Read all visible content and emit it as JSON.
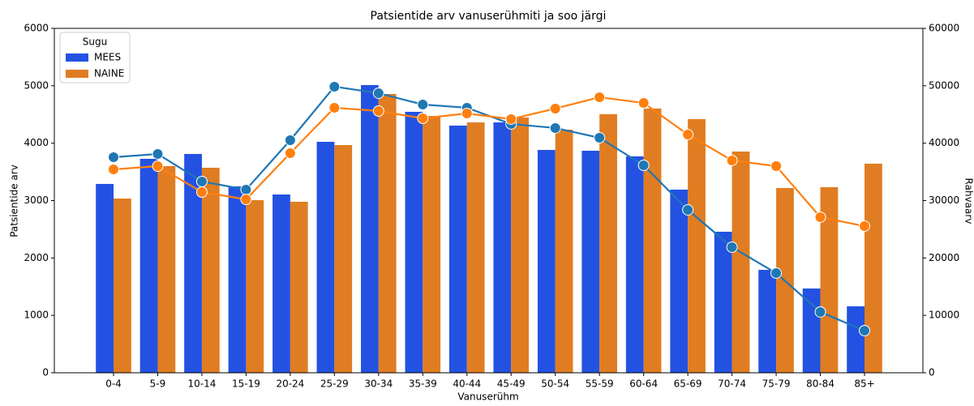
{
  "chart_data": {
    "type": "bar_line",
    "title": "Patsientide arv vanuserühmiti ja soo järgi",
    "x_label": "Vanuserühm",
    "y_label": "Patsientide arv",
    "y2_label": "Rahvaarv",
    "legend_title": "Sugu",
    "legend": "upper left",
    "categories": [
      "0-4",
      "5-9",
      "10-14",
      "15-19",
      "20-24",
      "25-29",
      "30-34",
      "35-39",
      "40-44",
      "45-49",
      "50-54",
      "55-59",
      "60-64",
      "65-69",
      "70-74",
      "75-79",
      "80-84",
      "85+"
    ],
    "series": [
      {
        "name": "MEES",
        "color": "#2352e2",
        "values": [
          3290,
          3727,
          3812,
          3247,
          3106,
          4024,
          5012,
          4546,
          4306,
          4362,
          3882,
          3868,
          3770,
          3191,
          2457,
          1793,
          1468,
          1158
        ]
      },
      {
        "name": "NAINE",
        "color": "#e07d22",
        "values": [
          3035,
          3600,
          3572,
          3007,
          2979,
          3967,
          4857,
          4475,
          4362,
          4447,
          4235,
          4504,
          4603,
          4419,
          3854,
          3219,
          3233,
          3643
        ]
      }
    ],
    "line_series": [
      {
        "color": "#1f77b4",
        "axis": "y2",
        "values": [
          37550,
          38120,
          33320,
          31910,
          40520,
          49840,
          48710,
          46730,
          46170,
          43340,
          42640,
          40940,
          36140,
          28380,
          21880,
          17360,
          10590,
          7340
        ]
      },
      {
        "color": "#ff7f0e",
        "axis": "y2",
        "values": [
          35440,
          36000,
          31480,
          30210,
          38260,
          46170,
          45600,
          44330,
          45180,
          44190,
          46030,
          48000,
          47010,
          41510,
          36990,
          36000,
          27110,
          25550
        ]
      }
    ],
    "ylim": [
      0,
      6000
    ],
    "yticks": [
      0,
      1000,
      2000,
      3000,
      4000,
      5000,
      6000
    ],
    "y2lim": [
      0,
      60000
    ],
    "y2ticks": [
      0,
      10000,
      20000,
      30000,
      40000,
      50000,
      60000
    ]
  }
}
